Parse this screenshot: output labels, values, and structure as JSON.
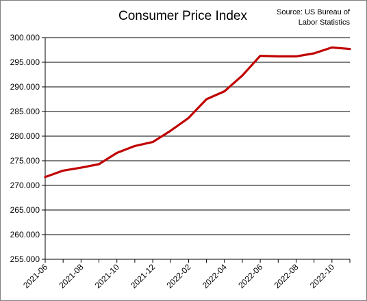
{
  "chart_data": {
    "type": "line",
    "title": "Consumer Price Index",
    "source": "Source: US Bureau of Labor Statistics",
    "xlabel": "",
    "ylabel": "",
    "ylim": [
      255,
      300
    ],
    "y_ticks": [
      "255.000",
      "260.000",
      "265.000",
      "270.000",
      "275.000",
      "280.000",
      "285.000",
      "290.000",
      "295.000",
      "300.000"
    ],
    "x_ticks": [
      "2021-06",
      "2021-08",
      "2021-10",
      "2021-12",
      "2022-02",
      "2022-04",
      "2022-06",
      "2022-08",
      "2022-10"
    ],
    "grid": true,
    "legend": "none",
    "series": [
      {
        "color": "#c00000",
        "x": [
          "2021-06",
          "2021-07",
          "2021-08",
          "2021-09",
          "2021-10",
          "2021-11",
          "2021-12",
          "2022-01",
          "2022-02",
          "2022-03",
          "2022-04",
          "2022-05",
          "2022-06",
          "2022-07",
          "2022-08",
          "2022-09",
          "2022-10",
          "2022-11"
        ],
        "values": [
          271.7,
          273.0,
          273.6,
          274.3,
          276.6,
          278.0,
          278.8,
          281.1,
          283.7,
          287.5,
          289.1,
          292.3,
          296.3,
          296.2,
          296.2,
          296.8,
          298.0,
          297.7
        ]
      }
    ]
  }
}
